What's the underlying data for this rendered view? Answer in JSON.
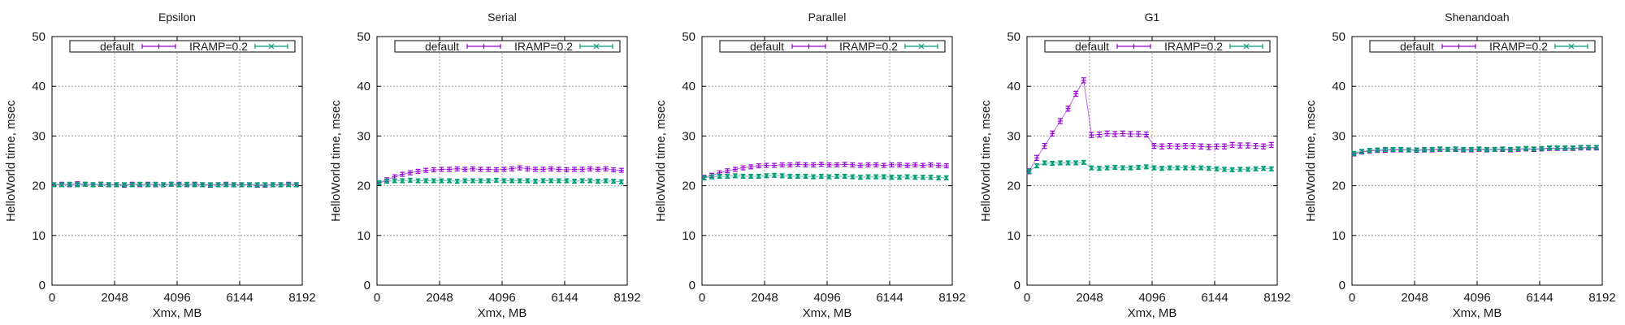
{
  "colors": {
    "default": "#9400d3",
    "iramp": "#009e73",
    "grid": "#a0a0a0"
  },
  "chart_data": {
    "type": "scatter",
    "shared": {
      "xlabel": "Xmx, MB",
      "ylabel": "HelloWorld time, msec",
      "xlim": [
        0,
        8192
      ],
      "ylim": [
        0,
        50
      ],
      "xticks": [
        0,
        2048,
        4096,
        6144,
        8192
      ],
      "yticks": [
        0,
        10,
        20,
        30,
        40,
        50
      ],
      "grid": true,
      "legend_position": "top-right",
      "legend": [
        "default",
        "IRAMP=0.2"
      ],
      "x": [
        64,
        320,
        576,
        832,
        1088,
        1344,
        1600,
        1856,
        2112,
        2368,
        2624,
        2880,
        3136,
        3392,
        3648,
        3904,
        4160,
        4416,
        4672,
        4928,
        5184,
        5440,
        5696,
        5952,
        6208,
        6464,
        6720,
        6976,
        7232,
        7488,
        7744,
        8000
      ]
    },
    "panels": [
      {
        "title": "Epsilon",
        "series": [
          {
            "name": "default",
            "err": 0.4,
            "values": [
              20.2,
              20.3,
              20.2,
              20.4,
              20.3,
              20.2,
              20.3,
              20.2,
              20.2,
              20.1,
              20.3,
              20.2,
              20.3,
              20.2,
              20.2,
              20.3,
              20.3,
              20.2,
              20.3,
              20.2,
              20.1,
              20.2,
              20.3,
              20.2,
              20.2,
              20.2,
              20.1,
              20.1,
              20.2,
              20.2,
              20.3,
              20.2
            ]
          },
          {
            "name": "IRAMP=0.2",
            "err": 0.4,
            "values": [
              20.2,
              20.2,
              20.3,
              20.2,
              20.3,
              20.2,
              20.3,
              20.2,
              20.2,
              20.2,
              20.2,
              20.3,
              20.2,
              20.3,
              20.2,
              20.3,
              20.2,
              20.3,
              20.2,
              20.2,
              20.2,
              20.2,
              20.2,
              20.2,
              20.2,
              20.2,
              20.2,
              20.2,
              20.2,
              20.2,
              20.2,
              20.2
            ]
          }
        ]
      },
      {
        "title": "Serial",
        "series": [
          {
            "name": "default",
            "err": 0.4,
            "values": [
              20.6,
              21.2,
              21.8,
              22.3,
              22.6,
              22.9,
              23.1,
              23.2,
              23.3,
              23.3,
              23.4,
              23.3,
              23.4,
              23.3,
              23.3,
              23.2,
              23.3,
              23.4,
              23.6,
              23.4,
              23.3,
              23.3,
              23.4,
              23.3,
              23.2,
              23.3,
              23.3,
              23.4,
              23.3,
              23.4,
              23.2,
              23.1
            ]
          },
          {
            "name": "IRAMP=0.2",
            "err": 0.4,
            "values": [
              20.6,
              20.9,
              21.0,
              21.0,
              21.1,
              21.0,
              21.0,
              21.0,
              21.0,
              21.0,
              20.9,
              21.0,
              21.0,
              21.0,
              21.0,
              21.1,
              21.0,
              21.0,
              21.0,
              21.0,
              20.9,
              21.0,
              21.0,
              21.0,
              21.0,
              20.9,
              21.0,
              21.0,
              20.9,
              21.0,
              20.9,
              20.8
            ]
          }
        ]
      },
      {
        "title": "Parallel",
        "series": [
          {
            "name": "default",
            "err": 0.4,
            "values": [
              21.7,
              22.1,
              22.6,
              23.0,
              23.3,
              23.6,
              23.8,
              24.0,
              24.1,
              24.1,
              24.2,
              24.2,
              24.3,
              24.2,
              24.2,
              24.3,
              24.2,
              24.2,
              24.3,
              24.2,
              24.1,
              24.2,
              24.2,
              24.1,
              24.2,
              24.2,
              24.1,
              24.2,
              24.1,
              24.2,
              24.1,
              24.0
            ]
          },
          {
            "name": "IRAMP=0.2",
            "err": 0.4,
            "values": [
              21.6,
              21.8,
              21.9,
              21.9,
              22.0,
              21.9,
              21.9,
              21.9,
              22.0,
              22.1,
              22.0,
              21.9,
              21.9,
              21.9,
              21.8,
              21.9,
              21.8,
              21.9,
              21.9,
              21.8,
              21.7,
              21.8,
              21.8,
              21.8,
              21.7,
              21.7,
              21.8,
              21.7,
              21.7,
              21.7,
              21.6,
              21.6
            ]
          }
        ]
      },
      {
        "title": "G1",
        "series": [
          {
            "name": "default",
            "err": 0.5,
            "values": [
              22.9,
              25.6,
              28.0,
              30.5,
              33.0,
              35.5,
              38.5,
              41.2,
              30.2,
              30.3,
              30.5,
              30.4,
              30.5,
              30.4,
              30.4,
              30.3,
              28.0,
              27.9,
              28.0,
              27.9,
              28.0,
              28.0,
              27.9,
              27.8,
              27.9,
              27.9,
              28.2,
              28.1,
              28.1,
              28.0,
              27.9,
              28.2
            ]
          },
          {
            "name": "IRAMP=0.2",
            "err": 0.4,
            "values": [
              22.9,
              24.0,
              24.6,
              24.5,
              24.6,
              24.6,
              24.6,
              24.7,
              23.6,
              23.5,
              23.6,
              23.7,
              23.6,
              23.6,
              23.7,
              23.8,
              23.6,
              23.5,
              23.6,
              23.6,
              23.6,
              23.6,
              23.6,
              23.5,
              23.4,
              23.3,
              23.2,
              23.3,
              23.3,
              23.4,
              23.5,
              23.4
            ]
          }
        ]
      },
      {
        "title": "Shenandoah",
        "series": [
          {
            "name": "default",
            "err": 0.4,
            "values": [
              26.4,
              26.8,
              27.0,
              27.1,
              27.1,
              27.2,
              27.2,
              27.2,
              27.1,
              27.2,
              27.2,
              27.3,
              27.3,
              27.3,
              27.2,
              27.2,
              27.3,
              27.2,
              27.3,
              27.3,
              27.2,
              27.3,
              27.4,
              27.3,
              27.4,
              27.5,
              27.5,
              27.5,
              27.5,
              27.6,
              27.6,
              27.6
            ]
          },
          {
            "name": "IRAMP=0.2",
            "err": 0.4,
            "values": [
              26.5,
              26.9,
              27.1,
              27.2,
              27.3,
              27.3,
              27.3,
              27.2,
              27.2,
              27.3,
              27.3,
              27.4,
              27.3,
              27.4,
              27.3,
              27.3,
              27.4,
              27.3,
              27.3,
              27.4,
              27.3,
              27.4,
              27.5,
              27.4,
              27.5,
              27.6,
              27.6,
              27.6,
              27.6,
              27.7,
              27.7,
              27.7
            ]
          }
        ]
      }
    ]
  }
}
